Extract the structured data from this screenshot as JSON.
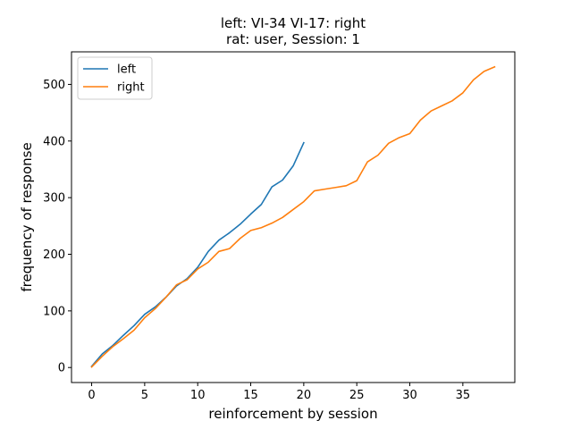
{
  "chart_data": {
    "type": "line",
    "title": [
      "left: VI-34   VI-17: right",
      "rat: user, Session: 1"
    ],
    "xlabel": "reinforcement by session",
    "ylabel": "frequency of response",
    "xlim": [
      -1.9,
      39.9
    ],
    "ylim": [
      -26.5,
      557.5
    ],
    "xticks": [
      0,
      5,
      10,
      15,
      20,
      25,
      30,
      35
    ],
    "yticks": [
      0,
      100,
      200,
      300,
      400,
      500
    ],
    "grid": false,
    "legend": "upper-left",
    "series": [
      {
        "name": "left",
        "color": "#1f77b4",
        "x": [
          0,
          1,
          2,
          3,
          4,
          5,
          6,
          7,
          8,
          9,
          10,
          11,
          12,
          13,
          14,
          15,
          16,
          17,
          18,
          19,
          20
        ],
        "y": [
          2,
          24,
          39,
          57,
          74,
          94,
          107,
          124,
          144,
          157,
          177,
          205,
          225,
          238,
          253,
          271,
          288,
          319,
          331,
          356,
          397
        ]
      },
      {
        "name": "right",
        "color": "#ff7f0e",
        "x": [
          0,
          1,
          2,
          3,
          4,
          5,
          6,
          7,
          8,
          9,
          10,
          11,
          12,
          13,
          14,
          15,
          16,
          17,
          18,
          19,
          20,
          21,
          22,
          23,
          24,
          25,
          26,
          27,
          28,
          29,
          30,
          31,
          32,
          33,
          34,
          35,
          36,
          37,
          38
        ],
        "y": [
          1,
          20,
          37,
          51,
          66,
          88,
          104,
          124,
          146,
          155,
          174,
          186,
          205,
          210,
          228,
          242,
          247,
          255,
          265,
          279,
          293,
          312,
          315,
          318,
          321,
          330,
          363,
          375,
          396,
          406,
          413,
          437,
          453,
          462,
          471,
          485,
          508,
          523,
          531
        ]
      }
    ]
  }
}
